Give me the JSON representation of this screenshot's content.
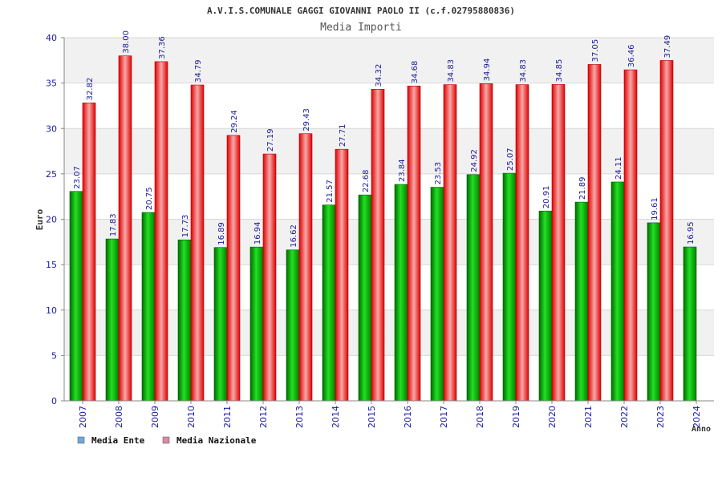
{
  "chart_data": {
    "type": "bar",
    "title": "A.V.I.S.COMUNALE GAGGI GIOVANNI PAOLO II (c.f.02795880836)",
    "subtitle": "Media Importi",
    "xlabel": "Anno",
    "ylabel": "Euro",
    "ylim": [
      0,
      40
    ],
    "yticks": [
      "0",
      "5",
      "10",
      "15",
      "20",
      "25",
      "30",
      "35",
      "40"
    ],
    "categories": [
      "2007",
      "2008",
      "2009",
      "2010",
      "2011",
      "2012",
      "2013",
      "2014",
      "2015",
      "2016",
      "2017",
      "2018",
      "2019",
      "2020",
      "2021",
      "2022",
      "2023",
      "2024"
    ],
    "series": [
      {
        "name": "Media Ente",
        "values": [
          23.07,
          17.83,
          20.75,
          17.73,
          16.89,
          16.94,
          16.62,
          21.57,
          22.68,
          23.84,
          23.53,
          24.92,
          25.07,
          20.91,
          21.89,
          24.11,
          19.61,
          16.95
        ],
        "labels": [
          "23.07",
          "17.83",
          "20.75",
          "17.73",
          "16.89",
          "16.94",
          "16.62",
          "21.57",
          "22.68",
          "23.84",
          "23.53",
          "24.92",
          "25.07",
          "20.91",
          "21.89",
          "24.11",
          "19.61",
          "16.95"
        ],
        "color": "#00b000",
        "legend_color": "#6fa8dc"
      },
      {
        "name": "Media Nazionale",
        "values": [
          32.82,
          38.0,
          37.36,
          34.79,
          29.24,
          27.19,
          29.43,
          27.71,
          34.32,
          34.68,
          34.83,
          34.94,
          34.83,
          34.85,
          37.05,
          36.46,
          37.49,
          null
        ],
        "labels": [
          "32.82",
          "38.00",
          "37.36",
          "34.79",
          "29.24",
          "27.19",
          "29.43",
          "27.71",
          "34.32",
          "34.68",
          "34.83",
          "34.94",
          "34.83",
          "34.85",
          "37.05",
          "36.46",
          "37.49",
          ""
        ],
        "color": "#ee2222",
        "legend_color": "#d88aa8"
      }
    ],
    "grid": true,
    "legend_position": "bottom-left"
  }
}
